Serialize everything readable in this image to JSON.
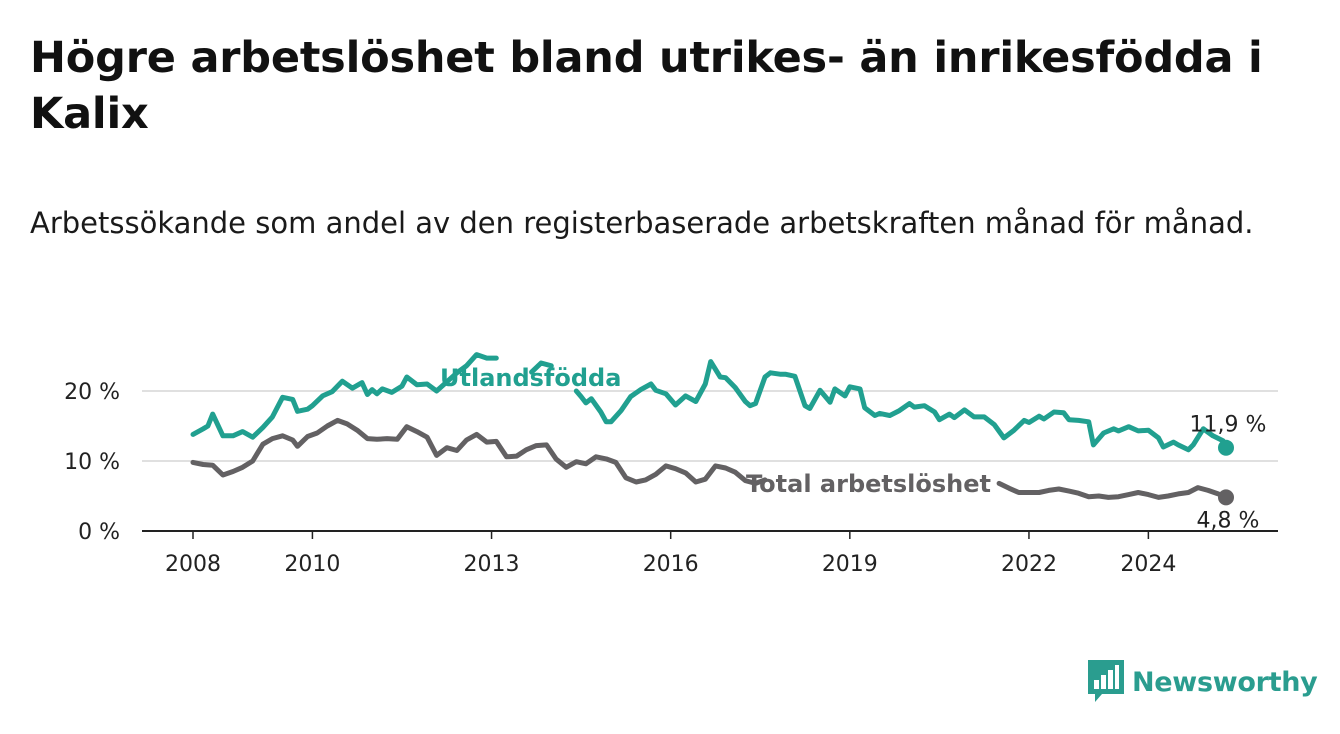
{
  "header": {
    "title": "Högre arbetslöshet bland utrikes- än inrikesfödda i Kalix",
    "subtitle": "Arbetssökande som andel av den registerbaserade arbetskraften månad för månad."
  },
  "brand": {
    "name": "Newsworthy",
    "icon": "bar-chart-speech-bubble-icon",
    "color": "#2a9d8f"
  },
  "chart_data": {
    "type": "line",
    "title": "Högre arbetslöshet bland utrikes- än inrikesfödda i Kalix",
    "subtitle": "Arbetssökande som andel av den registerbaserade arbetskraften månad för månad.",
    "xlabel": "",
    "ylabel": "",
    "x_tick_labels": [
      "2008",
      "2010",
      "2013",
      "2016",
      "2019",
      "2022",
      "2024"
    ],
    "x_tick_values": [
      2008,
      2010,
      2013,
      2016,
      2019,
      2022,
      2024
    ],
    "y_tick_labels": [
      "0 %",
      "10 %",
      "20 %"
    ],
    "y_tick_values": [
      0,
      10,
      20
    ],
    "xlim": [
      2007.2,
      2025.3
    ],
    "ylim": [
      0,
      24.5
    ],
    "grid": "horizontal",
    "legend": "inline",
    "series": [
      {
        "name": "Utlandsfödda",
        "color": "#21a090",
        "end_label": "11,9 %",
        "points": [
          [
            2008.0,
            13.8
          ],
          [
            2008.17,
            14.6
          ],
          [
            2008.25,
            15.0
          ],
          [
            2008.33,
            16.7
          ],
          [
            2008.5,
            13.6
          ],
          [
            2008.67,
            13.6
          ],
          [
            2008.83,
            14.2
          ],
          [
            2009.0,
            13.4
          ],
          [
            2009.17,
            14.8
          ],
          [
            2009.33,
            16.3
          ],
          [
            2009.5,
            19.1
          ],
          [
            2009.67,
            18.8
          ],
          [
            2009.75,
            17.1
          ],
          [
            2009.92,
            17.4
          ],
          [
            2010.0,
            17.9
          ],
          [
            2010.17,
            19.3
          ],
          [
            2010.33,
            19.9
          ],
          [
            2010.5,
            21.4
          ],
          [
            2010.67,
            20.4
          ],
          [
            2010.83,
            21.2
          ],
          [
            2010.92,
            19.5
          ],
          [
            2011.0,
            20.2
          ],
          [
            2011.08,
            19.6
          ],
          [
            2011.17,
            20.3
          ],
          [
            2011.33,
            19.8
          ],
          [
            2011.5,
            20.7
          ],
          [
            2011.58,
            22.0
          ],
          [
            2011.75,
            20.9
          ],
          [
            2011.92,
            21.0
          ],
          [
            2012.08,
            20.0
          ],
          [
            2012.25,
            21.3
          ],
          [
            2012.42,
            22.6
          ],
          [
            2012.58,
            23.6
          ],
          [
            2012.75,
            25.2
          ],
          [
            2012.92,
            24.7
          ],
          [
            2013.08,
            24.7
          ],
          [
            2013.25,
            null
          ],
          [
            2013.67,
            22.7
          ],
          [
            2013.83,
            24.0
          ],
          [
            2014.0,
            23.6
          ],
          [
            2014.17,
            null
          ],
          [
            2014.42,
            20.0
          ],
          [
            2014.5,
            19.2
          ],
          [
            2014.58,
            18.3
          ],
          [
            2014.67,
            18.9
          ],
          [
            2014.83,
            17.0
          ],
          [
            2014.92,
            15.6
          ],
          [
            2015.0,
            15.6
          ],
          [
            2015.17,
            17.2
          ],
          [
            2015.33,
            19.2
          ],
          [
            2015.5,
            20.2
          ],
          [
            2015.67,
            21.0
          ],
          [
            2015.75,
            20.1
          ],
          [
            2015.92,
            19.6
          ],
          [
            2016.08,
            18.0
          ],
          [
            2016.25,
            19.3
          ],
          [
            2016.42,
            18.5
          ],
          [
            2016.58,
            21.0
          ],
          [
            2016.67,
            24.2
          ],
          [
            2016.83,
            22.0
          ],
          [
            2016.92,
            21.9
          ],
          [
            2017.08,
            20.5
          ],
          [
            2017.25,
            18.5
          ],
          [
            2017.33,
            17.9
          ],
          [
            2017.42,
            18.2
          ],
          [
            2017.58,
            22.0
          ],
          [
            2017.67,
            22.6
          ],
          [
            2017.83,
            22.4
          ],
          [
            2017.92,
            22.4
          ],
          [
            2018.08,
            22.1
          ],
          [
            2018.25,
            17.9
          ],
          [
            2018.33,
            17.5
          ],
          [
            2018.5,
            20.1
          ],
          [
            2018.67,
            18.4
          ],
          [
            2018.75,
            20.3
          ],
          [
            2018.92,
            19.3
          ],
          [
            2019.0,
            20.6
          ],
          [
            2019.17,
            20.3
          ],
          [
            2019.25,
            17.6
          ],
          [
            2019.42,
            16.5
          ],
          [
            2019.5,
            16.8
          ],
          [
            2019.67,
            16.5
          ],
          [
            2019.83,
            17.2
          ],
          [
            2020.0,
            18.2
          ],
          [
            2020.08,
            17.7
          ],
          [
            2020.25,
            17.9
          ],
          [
            2020.42,
            17.0
          ],
          [
            2020.5,
            15.9
          ],
          [
            2020.67,
            16.7
          ],
          [
            2020.75,
            16.2
          ],
          [
            2020.92,
            17.3
          ],
          [
            2021.08,
            16.3
          ],
          [
            2021.25,
            16.3
          ],
          [
            2021.42,
            15.2
          ],
          [
            2021.58,
            13.3
          ],
          [
            2021.75,
            14.4
          ],
          [
            2021.92,
            15.8
          ],
          [
            2022.0,
            15.5
          ],
          [
            2022.17,
            16.4
          ],
          [
            2022.25,
            16.0
          ],
          [
            2022.42,
            17.0
          ],
          [
            2022.58,
            16.9
          ],
          [
            2022.67,
            15.9
          ],
          [
            2022.83,
            15.8
          ],
          [
            2023.0,
            15.6
          ],
          [
            2023.08,
            12.3
          ],
          [
            2023.25,
            14.0
          ],
          [
            2023.42,
            14.6
          ],
          [
            2023.5,
            14.3
          ],
          [
            2023.67,
            14.9
          ],
          [
            2023.83,
            14.3
          ],
          [
            2024.0,
            14.4
          ],
          [
            2024.17,
            13.3
          ],
          [
            2024.25,
            12.0
          ],
          [
            2024.42,
            12.7
          ],
          [
            2024.5,
            12.3
          ],
          [
            2024.67,
            11.6
          ],
          [
            2024.75,
            12.3
          ],
          [
            2024.92,
            14.6
          ],
          [
            2025.08,
            13.6
          ],
          [
            2025.25,
            12.9
          ],
          [
            2025.3,
            11.9
          ]
        ]
      },
      {
        "name": "Total arbetslöshet",
        "color": "#636163",
        "end_label": "4,8 %",
        "points": [
          [
            2008.0,
            9.8
          ],
          [
            2008.17,
            9.5
          ],
          [
            2008.33,
            9.4
          ],
          [
            2008.5,
            8.0
          ],
          [
            2008.67,
            8.5
          ],
          [
            2008.83,
            9.1
          ],
          [
            2009.0,
            10.0
          ],
          [
            2009.17,
            12.4
          ],
          [
            2009.33,
            13.2
          ],
          [
            2009.5,
            13.6
          ],
          [
            2009.67,
            13.0
          ],
          [
            2009.75,
            12.1
          ],
          [
            2009.92,
            13.5
          ],
          [
            2010.08,
            14.0
          ],
          [
            2010.25,
            15.0
          ],
          [
            2010.42,
            15.8
          ],
          [
            2010.58,
            15.3
          ],
          [
            2010.75,
            14.4
          ],
          [
            2010.92,
            13.2
          ],
          [
            2011.08,
            13.1
          ],
          [
            2011.25,
            13.2
          ],
          [
            2011.42,
            13.1
          ],
          [
            2011.58,
            14.9
          ],
          [
            2011.75,
            14.2
          ],
          [
            2011.92,
            13.4
          ],
          [
            2012.08,
            10.8
          ],
          [
            2012.25,
            11.9
          ],
          [
            2012.42,
            11.5
          ],
          [
            2012.58,
            13.0
          ],
          [
            2012.75,
            13.8
          ],
          [
            2012.92,
            12.7
          ],
          [
            2013.08,
            12.8
          ],
          [
            2013.25,
            10.6
          ],
          [
            2013.42,
            10.7
          ],
          [
            2013.58,
            11.6
          ],
          [
            2013.75,
            12.2
          ],
          [
            2013.92,
            12.3
          ],
          [
            2014.08,
            10.3
          ],
          [
            2014.25,
            9.1
          ],
          [
            2014.42,
            9.9
          ],
          [
            2014.58,
            9.6
          ],
          [
            2014.75,
            10.6
          ],
          [
            2014.92,
            10.3
          ],
          [
            2015.08,
            9.8
          ],
          [
            2015.25,
            7.6
          ],
          [
            2015.42,
            7.0
          ],
          [
            2015.58,
            7.3
          ],
          [
            2015.75,
            8.1
          ],
          [
            2015.92,
            9.3
          ],
          [
            2016.08,
            8.9
          ],
          [
            2016.25,
            8.3
          ],
          [
            2016.42,
            7.0
          ],
          [
            2016.58,
            7.4
          ],
          [
            2016.75,
            9.3
          ],
          [
            2016.92,
            9.0
          ],
          [
            2017.08,
            8.4
          ],
          [
            2017.25,
            7.2
          ],
          [
            2017.42,
            6.8
          ],
          [
            2017.58,
            7.3
          ],
          [
            2017.75,
            null
          ],
          [
            2021.5,
            6.8
          ],
          [
            2021.67,
            6.1
          ],
          [
            2021.83,
            5.5
          ],
          [
            2022.0,
            5.5
          ],
          [
            2022.17,
            5.5
          ],
          [
            2022.33,
            5.8
          ],
          [
            2022.5,
            6.0
          ],
          [
            2022.67,
            5.7
          ],
          [
            2022.83,
            5.4
          ],
          [
            2023.0,
            4.9
          ],
          [
            2023.17,
            5.0
          ],
          [
            2023.33,
            4.8
          ],
          [
            2023.5,
            4.9
          ],
          [
            2023.67,
            5.2
          ],
          [
            2023.83,
            5.5
          ],
          [
            2024.0,
            5.2
          ],
          [
            2024.17,
            4.8
          ],
          [
            2024.33,
            5.0
          ],
          [
            2024.5,
            5.3
          ],
          [
            2024.67,
            5.5
          ],
          [
            2024.83,
            6.2
          ],
          [
            2025.0,
            5.8
          ],
          [
            2025.17,
            5.3
          ],
          [
            2025.3,
            4.8
          ]
        ]
      }
    ]
  }
}
